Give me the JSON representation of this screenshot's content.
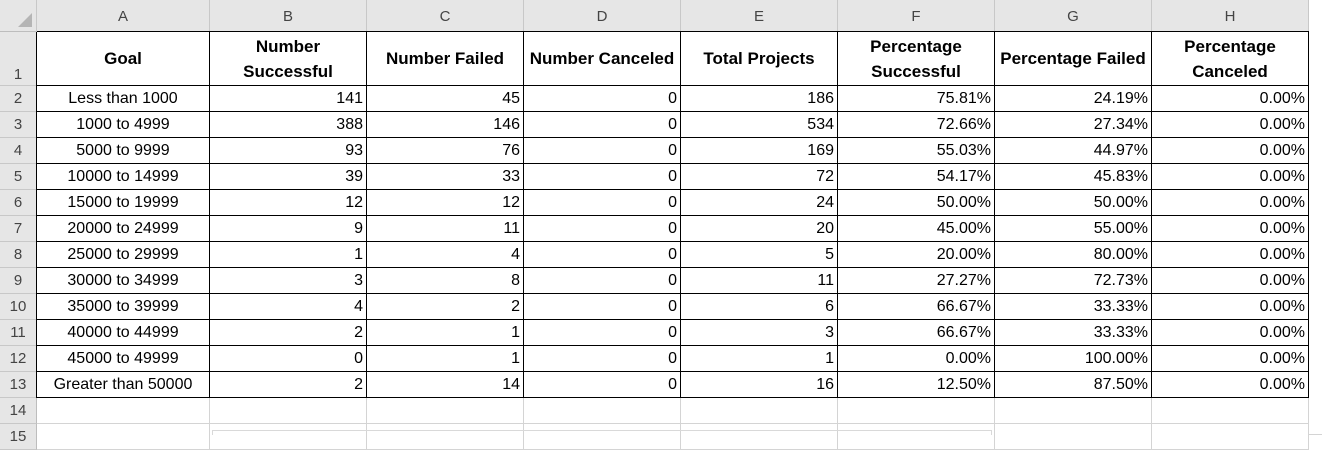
{
  "columns": [
    "A",
    "B",
    "C",
    "D",
    "E",
    "F",
    "G",
    "H"
  ],
  "row_numbers": [
    "1",
    "2",
    "3",
    "4",
    "5",
    "6",
    "7",
    "8",
    "9",
    "10",
    "11",
    "12",
    "13",
    "14",
    "15"
  ],
  "headers": {
    "goal": "Goal",
    "num_successful": "Number Successful",
    "num_failed": "Number Failed",
    "num_canceled": "Number Canceled",
    "total_projects": "Total Projects",
    "pct_successful": "Percentage Successful",
    "pct_failed": "Percentage Failed",
    "pct_canceled": "Percentage Canceled"
  },
  "rows": [
    [
      "Less than 1000",
      "141",
      "45",
      "0",
      "186",
      "75.81%",
      "24.19%",
      "0.00%"
    ],
    [
      "1000 to 4999",
      "388",
      "146",
      "0",
      "534",
      "72.66%",
      "27.34%",
      "0.00%"
    ],
    [
      "5000 to 9999",
      "93",
      "76",
      "0",
      "169",
      "55.03%",
      "44.97%",
      "0.00%"
    ],
    [
      "10000 to 14999",
      "39",
      "33",
      "0",
      "72",
      "54.17%",
      "45.83%",
      "0.00%"
    ],
    [
      "15000 to 19999",
      "12",
      "12",
      "0",
      "24",
      "50.00%",
      "50.00%",
      "0.00%"
    ],
    [
      "20000 to 24999",
      "9",
      "11",
      "0",
      "20",
      "45.00%",
      "55.00%",
      "0.00%"
    ],
    [
      "25000 to 29999",
      "1",
      "4",
      "0",
      "5",
      "20.00%",
      "80.00%",
      "0.00%"
    ],
    [
      "30000 to  34999",
      "3",
      "8",
      "0",
      "11",
      "27.27%",
      "72.73%",
      "0.00%"
    ],
    [
      "35000 to 39999",
      "4",
      "2",
      "0",
      "6",
      "66.67%",
      "33.33%",
      "0.00%"
    ],
    [
      "40000 to 44999",
      "2",
      "1",
      "0",
      "3",
      "66.67%",
      "33.33%",
      "0.00%"
    ],
    [
      "45000 to 49999",
      "0",
      "1",
      "0",
      "1",
      "0.00%",
      "100.00%",
      "0.00%"
    ],
    [
      "Greater than 50000",
      "2",
      "14",
      "0",
      "16",
      "12.50%",
      "87.50%",
      "0.00%"
    ]
  ]
}
